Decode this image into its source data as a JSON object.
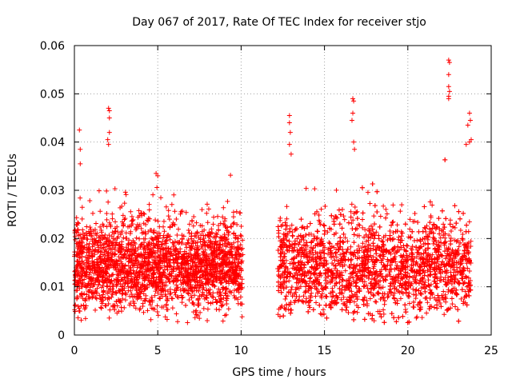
{
  "chart_data": {
    "type": "scatter",
    "title": "Day 067 of 2017, Rate Of TEC Index for receiver stjo",
    "xlabel": "GPS time / hours",
    "ylabel": "ROTI / TECUs",
    "xlim": [
      0,
      25
    ],
    "ylim": [
      0,
      0.06
    ],
    "x_ticks": [
      0,
      5,
      10,
      15,
      20,
      25
    ],
    "x_tick_labels": [
      "0",
      "5",
      "10",
      "15",
      "20",
      "25"
    ],
    "y_ticks": [
      0,
      0.01,
      0.02,
      0.03,
      0.04,
      0.05,
      0.06
    ],
    "y_tick_labels": [
      "0",
      "0.01",
      "0.02",
      "0.03",
      "0.04",
      "0.05",
      "0.06"
    ],
    "grid": true,
    "marker": "plus",
    "color": "#ff0000",
    "series": [
      {
        "name": "ROTI",
        "segments": [
          {
            "t_start": 0.0,
            "t_end": 10.1,
            "typical_min": 0.006,
            "typical_max": 0.024,
            "center": 0.014
          },
          {
            "t_start": 12.2,
            "t_end": 23.8,
            "typical_min": 0.006,
            "typical_max": 0.026,
            "center": 0.014
          }
        ],
        "no_data_gap": [
          10.1,
          12.2
        ],
        "outliers": [
          {
            "x": 0.3,
            "y": 0.0425
          },
          {
            "x": 0.35,
            "y": 0.0385
          },
          {
            "x": 0.35,
            "y": 0.0355
          },
          {
            "x": 2.05,
            "y": 0.047
          },
          {
            "x": 2.1,
            "y": 0.0465
          },
          {
            "x": 2.1,
            "y": 0.045
          },
          {
            "x": 2.0,
            "y": 0.0405
          },
          {
            "x": 2.05,
            "y": 0.0395
          },
          {
            "x": 2.1,
            "y": 0.042
          },
          {
            "x": 4.9,
            "y": 0.0335
          },
          {
            "x": 5.0,
            "y": 0.033
          },
          {
            "x": 12.9,
            "y": 0.0455
          },
          {
            "x": 12.9,
            "y": 0.044
          },
          {
            "x": 12.95,
            "y": 0.042
          },
          {
            "x": 12.9,
            "y": 0.0395
          },
          {
            "x": 13.0,
            "y": 0.0375
          },
          {
            "x": 16.7,
            "y": 0.049
          },
          {
            "x": 16.75,
            "y": 0.0485
          },
          {
            "x": 16.7,
            "y": 0.046
          },
          {
            "x": 16.65,
            "y": 0.0445
          },
          {
            "x": 16.75,
            "y": 0.04
          },
          {
            "x": 16.8,
            "y": 0.0385
          },
          {
            "x": 22.45,
            "y": 0.057
          },
          {
            "x": 22.5,
            "y": 0.0565
          },
          {
            "x": 22.45,
            "y": 0.054
          },
          {
            "x": 22.45,
            "y": 0.0515
          },
          {
            "x": 22.5,
            "y": 0.0505
          },
          {
            "x": 22.45,
            "y": 0.0495
          },
          {
            "x": 22.45,
            "y": 0.049
          },
          {
            "x": 23.7,
            "y": 0.046
          },
          {
            "x": 23.75,
            "y": 0.0445
          },
          {
            "x": 23.6,
            "y": 0.0435
          },
          {
            "x": 23.8,
            "y": 0.0405
          },
          {
            "x": 23.7,
            "y": 0.04
          },
          {
            "x": 23.5,
            "y": 0.0395
          }
        ]
      }
    ]
  }
}
